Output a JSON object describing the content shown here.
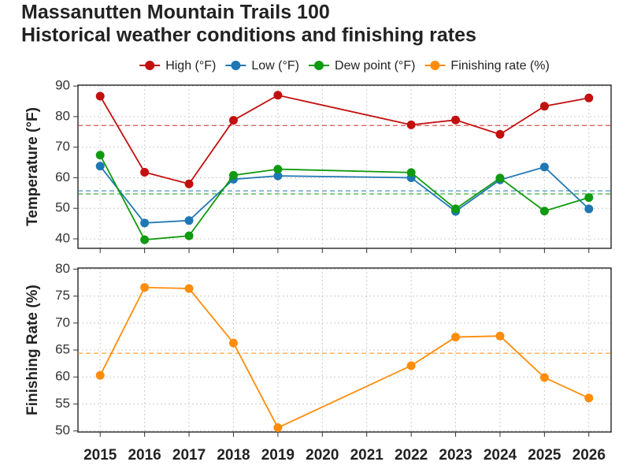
{
  "chart_data": [
    {
      "type": "line",
      "title": [
        "Massanutten Mountain Trails 100",
        "Historical weather conditions and finishing rates"
      ],
      "ylabel": "Temperature (°F)",
      "x": [
        2015,
        2016,
        2017,
        2018,
        2019,
        2022,
        2023,
        2024,
        2025,
        2026
      ],
      "xlim": [
        2014.5,
        2026.5
      ],
      "xticks": [
        2015,
        2016,
        2017,
        2018,
        2019,
        2020,
        2021,
        2022,
        2023,
        2024,
        2025,
        2026
      ],
      "ylim": [
        36.9,
        90.3
      ],
      "yticks": [
        40,
        50,
        60,
        70,
        80,
        90
      ],
      "grid": true,
      "legend": "top",
      "series": [
        {
          "name": "High (°F)",
          "color": "#c40f0f",
          "values": [
            86.7,
            61.8,
            58,
            78.8,
            87,
            77.3,
            78.9,
            74.2,
            83.4,
            86.1
          ],
          "hline": 77.1
        },
        {
          "name": "Low (°F)",
          "color": "#1f77b4",
          "values": [
            63.8,
            45.2,
            46,
            59.5,
            60.6,
            60,
            49,
            59.3,
            63.5,
            49.8
          ],
          "hline": 55.7
        },
        {
          "name": "Dew point (°F)",
          "color": "#0f9a0f",
          "values": [
            67.4,
            39.7,
            41,
            60.8,
            62.8,
            61.7,
            49.8,
            59.9,
            49.1,
            53.5
          ],
          "hline": 54.7
        }
      ]
    },
    {
      "type": "line",
      "ylabel": "Finishing Rate (%)",
      "x": [
        2015,
        2016,
        2017,
        2018,
        2019,
        2022,
        2023,
        2024,
        2025,
        2026
      ],
      "xlim": [
        2014.5,
        2026.5
      ],
      "xticks": [
        2015,
        2016,
        2017,
        2018,
        2019,
        2020,
        2021,
        2022,
        2023,
        2024,
        2025,
        2026
      ],
      "ylim": [
        49.8,
        80.2
      ],
      "yticks": [
        50,
        55,
        60,
        65,
        70,
        75,
        80
      ],
      "grid": true,
      "series": [
        {
          "name": "Finishing rate (%)",
          "color": "#ff8c0a",
          "values": [
            60.3,
            76.6,
            76.4,
            66.3,
            50.6,
            62.1,
            67.4,
            67.6,
            59.9,
            56.1
          ],
          "hline": 64.4
        }
      ]
    }
  ]
}
